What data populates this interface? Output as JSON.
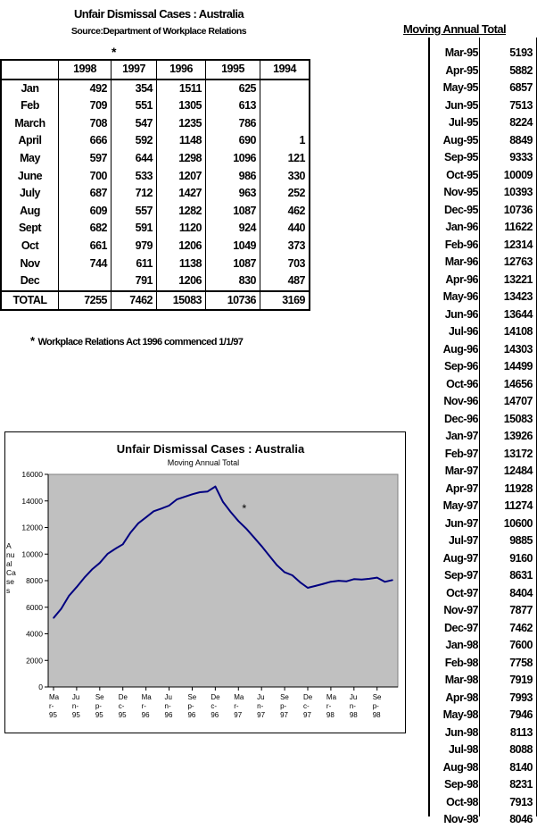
{
  "header": {
    "title": "Unfair Dismissal Cases : Australia",
    "source": "Source:Department of Workplace Relations",
    "asterisk": "*"
  },
  "cases_table": {
    "columns": [
      "",
      "1998",
      "1997",
      "1996",
      "1995",
      "1994"
    ],
    "rows": [
      {
        "month": "Jan",
        "v": [
          "492",
          "354",
          "1511",
          "625",
          ""
        ]
      },
      {
        "month": "Feb",
        "v": [
          "709",
          "551",
          "1305",
          "613",
          ""
        ]
      },
      {
        "month": "March",
        "v": [
          "708",
          "547",
          "1235",
          "786",
          ""
        ]
      },
      {
        "month": "April",
        "v": [
          "666",
          "592",
          "1148",
          "690",
          "1"
        ]
      },
      {
        "month": "May",
        "v": [
          "597",
          "644",
          "1298",
          "1096",
          "121"
        ]
      },
      {
        "month": "June",
        "v": [
          "700",
          "533",
          "1207",
          "986",
          "330"
        ]
      },
      {
        "month": "July",
        "v": [
          "687",
          "712",
          "1427",
          "963",
          "252"
        ]
      },
      {
        "month": "Aug",
        "v": [
          "609",
          "557",
          "1282",
          "1087",
          "462"
        ]
      },
      {
        "month": "Sept",
        "v": [
          "682",
          "591",
          "1120",
          "924",
          "440"
        ]
      },
      {
        "month": "Oct",
        "v": [
          "661",
          "979",
          "1206",
          "1049",
          "373"
        ]
      },
      {
        "month": "Nov",
        "v": [
          "744",
          "611",
          "1138",
          "1087",
          "703"
        ]
      },
      {
        "month": "Dec",
        "v": [
          "",
          "791",
          "1206",
          "830",
          "487"
        ]
      }
    ],
    "total": {
      "label": "TOTAL",
      "v": [
        "7255",
        "7462",
        "15083",
        "10736",
        "3169"
      ]
    }
  },
  "footnote": {
    "marker": "*",
    "text": "Workplace Relations Act  1996 commenced 1/1/97"
  },
  "moving_annual_total": {
    "title": "Moving Annual Total",
    "rows": [
      {
        "label": "Mar-95",
        "value": "5193"
      },
      {
        "label": "Apr-95",
        "value": "5882"
      },
      {
        "label": "May-95",
        "value": "6857"
      },
      {
        "label": "Jun-95",
        "value": "7513"
      },
      {
        "label": "Jul-95",
        "value": "8224"
      },
      {
        "label": "Aug-95",
        "value": "8849"
      },
      {
        "label": "Sep-95",
        "value": "9333"
      },
      {
        "label": "Oct-95",
        "value": "10009"
      },
      {
        "label": "Nov-95",
        "value": "10393"
      },
      {
        "label": "Dec-95",
        "value": "10736"
      },
      {
        "label": "Jan-96",
        "value": "11622"
      },
      {
        "label": "Feb-96",
        "value": "12314"
      },
      {
        "label": "Mar-96",
        "value": "12763"
      },
      {
        "label": "Apr-96",
        "value": "13221"
      },
      {
        "label": "May-96",
        "value": "13423"
      },
      {
        "label": "Jun-96",
        "value": "13644"
      },
      {
        "label": "Jul-96",
        "value": "14108"
      },
      {
        "label": "Aug-96",
        "value": "14303"
      },
      {
        "label": "Sep-96",
        "value": "14499"
      },
      {
        "label": "Oct-96",
        "value": "14656"
      },
      {
        "label": "Nov-96",
        "value": "14707"
      },
      {
        "label": "Dec-96",
        "value": "15083"
      },
      {
        "label": "Jan-97",
        "value": "13926"
      },
      {
        "label": "Feb-97",
        "value": "13172"
      },
      {
        "label": "Mar-97",
        "value": "12484"
      },
      {
        "label": "Apr-97",
        "value": "11928"
      },
      {
        "label": "May-97",
        "value": "11274"
      },
      {
        "label": "Jun-97",
        "value": "10600"
      },
      {
        "label": "Jul-97",
        "value": "9885"
      },
      {
        "label": "Aug-97",
        "value": "9160"
      },
      {
        "label": "Sep-97",
        "value": "8631"
      },
      {
        "label": "Oct-97",
        "value": "8404"
      },
      {
        "label": "Nov-97",
        "value": "7877"
      },
      {
        "label": "Dec-97",
        "value": "7462"
      },
      {
        "label": "Jan-98",
        "value": "7600"
      },
      {
        "label": "Feb-98",
        "value": "7758"
      },
      {
        "label": "Mar-98",
        "value": "7919"
      },
      {
        "label": "Apr-98",
        "value": "7993"
      },
      {
        "label": "May-98",
        "value": "7946"
      },
      {
        "label": "Jun-98",
        "value": "8113"
      },
      {
        "label": "Jul-98",
        "value": "8088"
      },
      {
        "label": "Aug-98",
        "value": "8140"
      },
      {
        "label": "Sep-98",
        "value": "8231"
      },
      {
        "label": "Oct-98",
        "value": "7913"
      },
      {
        "label": "Nov-98",
        "value": "8046"
      }
    ]
  },
  "chart_data": {
    "type": "line",
    "title": "Unfair Dismissal Cases : Australia",
    "subtitle": "Moving Annual Total",
    "ylabel": "Annual Cases",
    "ylabel_lines": [
      "A",
      "nu",
      "al",
      "Ca",
      "se",
      "s"
    ],
    "xlabel": "",
    "ylim": [
      0,
      16000
    ],
    "yticks": [
      0,
      2000,
      4000,
      6000,
      8000,
      10000,
      12000,
      14000,
      16000
    ],
    "grid": false,
    "plot_background": "#c0c0c0",
    "line_color": "#000080",
    "annotation": "*",
    "annotation_near": "Mar-97",
    "x": [
      "Mar-95",
      "Apr-95",
      "May-95",
      "Jun-95",
      "Jul-95",
      "Aug-95",
      "Sep-95",
      "Oct-95",
      "Nov-95",
      "Dec-95",
      "Jan-96",
      "Feb-96",
      "Mar-96",
      "Apr-96",
      "May-96",
      "Jun-96",
      "Jul-96",
      "Aug-96",
      "Sep-96",
      "Oct-96",
      "Nov-96",
      "Dec-96",
      "Jan-97",
      "Feb-97",
      "Mar-97",
      "Apr-97",
      "May-97",
      "Jun-97",
      "Jul-97",
      "Aug-97",
      "Sep-97",
      "Oct-97",
      "Nov-97",
      "Dec-97",
      "Jan-98",
      "Feb-98",
      "Mar-98",
      "Apr-98",
      "May-98",
      "Jun-98",
      "Jul-98",
      "Aug-98",
      "Sep-98",
      "Oct-98",
      "Nov-98"
    ],
    "values": [
      5193,
      5882,
      6857,
      7513,
      8224,
      8849,
      9333,
      10009,
      10393,
      10736,
      11622,
      12314,
      12763,
      13221,
      13423,
      13644,
      14108,
      14303,
      14499,
      14656,
      14707,
      15083,
      13926,
      13172,
      12484,
      11928,
      11274,
      10600,
      9885,
      9160,
      8631,
      8404,
      7877,
      7462,
      7600,
      7758,
      7919,
      7993,
      7946,
      8113,
      8088,
      8140,
      8231,
      7913,
      8046
    ],
    "x_tick_labels": [
      [
        "Ma",
        "r-",
        "95"
      ],
      [
        "Ju",
        "n-",
        "95"
      ],
      [
        "Se",
        "p-",
        "95"
      ],
      [
        "De",
        "c-",
        "95"
      ],
      [
        "Ma",
        "r-",
        "96"
      ],
      [
        "Ju",
        "n-",
        "96"
      ],
      [
        "Se",
        "p-",
        "96"
      ],
      [
        "De",
        "c-",
        "96"
      ],
      [
        "Ma",
        "r-",
        "97"
      ],
      [
        "Ju",
        "n-",
        "97"
      ],
      [
        "Se",
        "p-",
        "97"
      ],
      [
        "De",
        "c-",
        "97"
      ],
      [
        "Ma",
        "r-",
        "98"
      ],
      [
        "Ju",
        "n-",
        "98"
      ],
      [
        "Se",
        "p-",
        "98"
      ]
    ]
  }
}
